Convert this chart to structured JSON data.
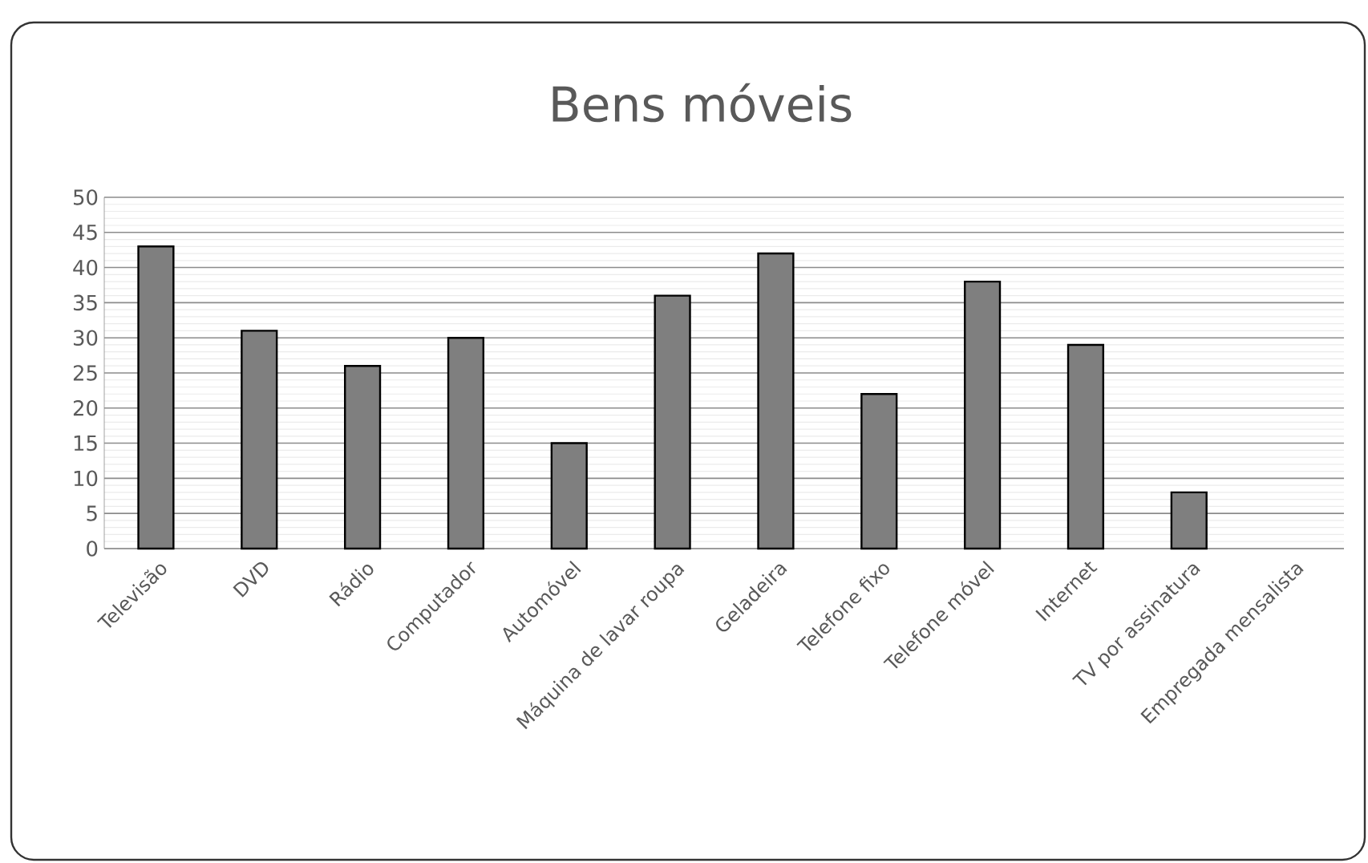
{
  "chart_data": {
    "type": "bar",
    "title": "Bens móveis",
    "categories": [
      "Televisão",
      "DVD",
      "Rádio",
      "Computador",
      "Automóvel",
      "Máquina de lavar roupa",
      "Geladeira",
      "Telefone fixo",
      "Telefone móvel",
      "Internet",
      "TV por assinatura",
      "Empregada mensalista"
    ],
    "values": [
      43,
      31,
      26,
      30,
      15,
      36,
      42,
      22,
      38,
      29,
      8,
      null
    ],
    "color": "#7f7f7f",
    "ylim": [
      0,
      50
    ],
    "yticks": [
      0,
      5,
      10,
      15,
      20,
      25,
      30,
      35,
      40,
      45,
      50
    ],
    "grid": "y"
  }
}
